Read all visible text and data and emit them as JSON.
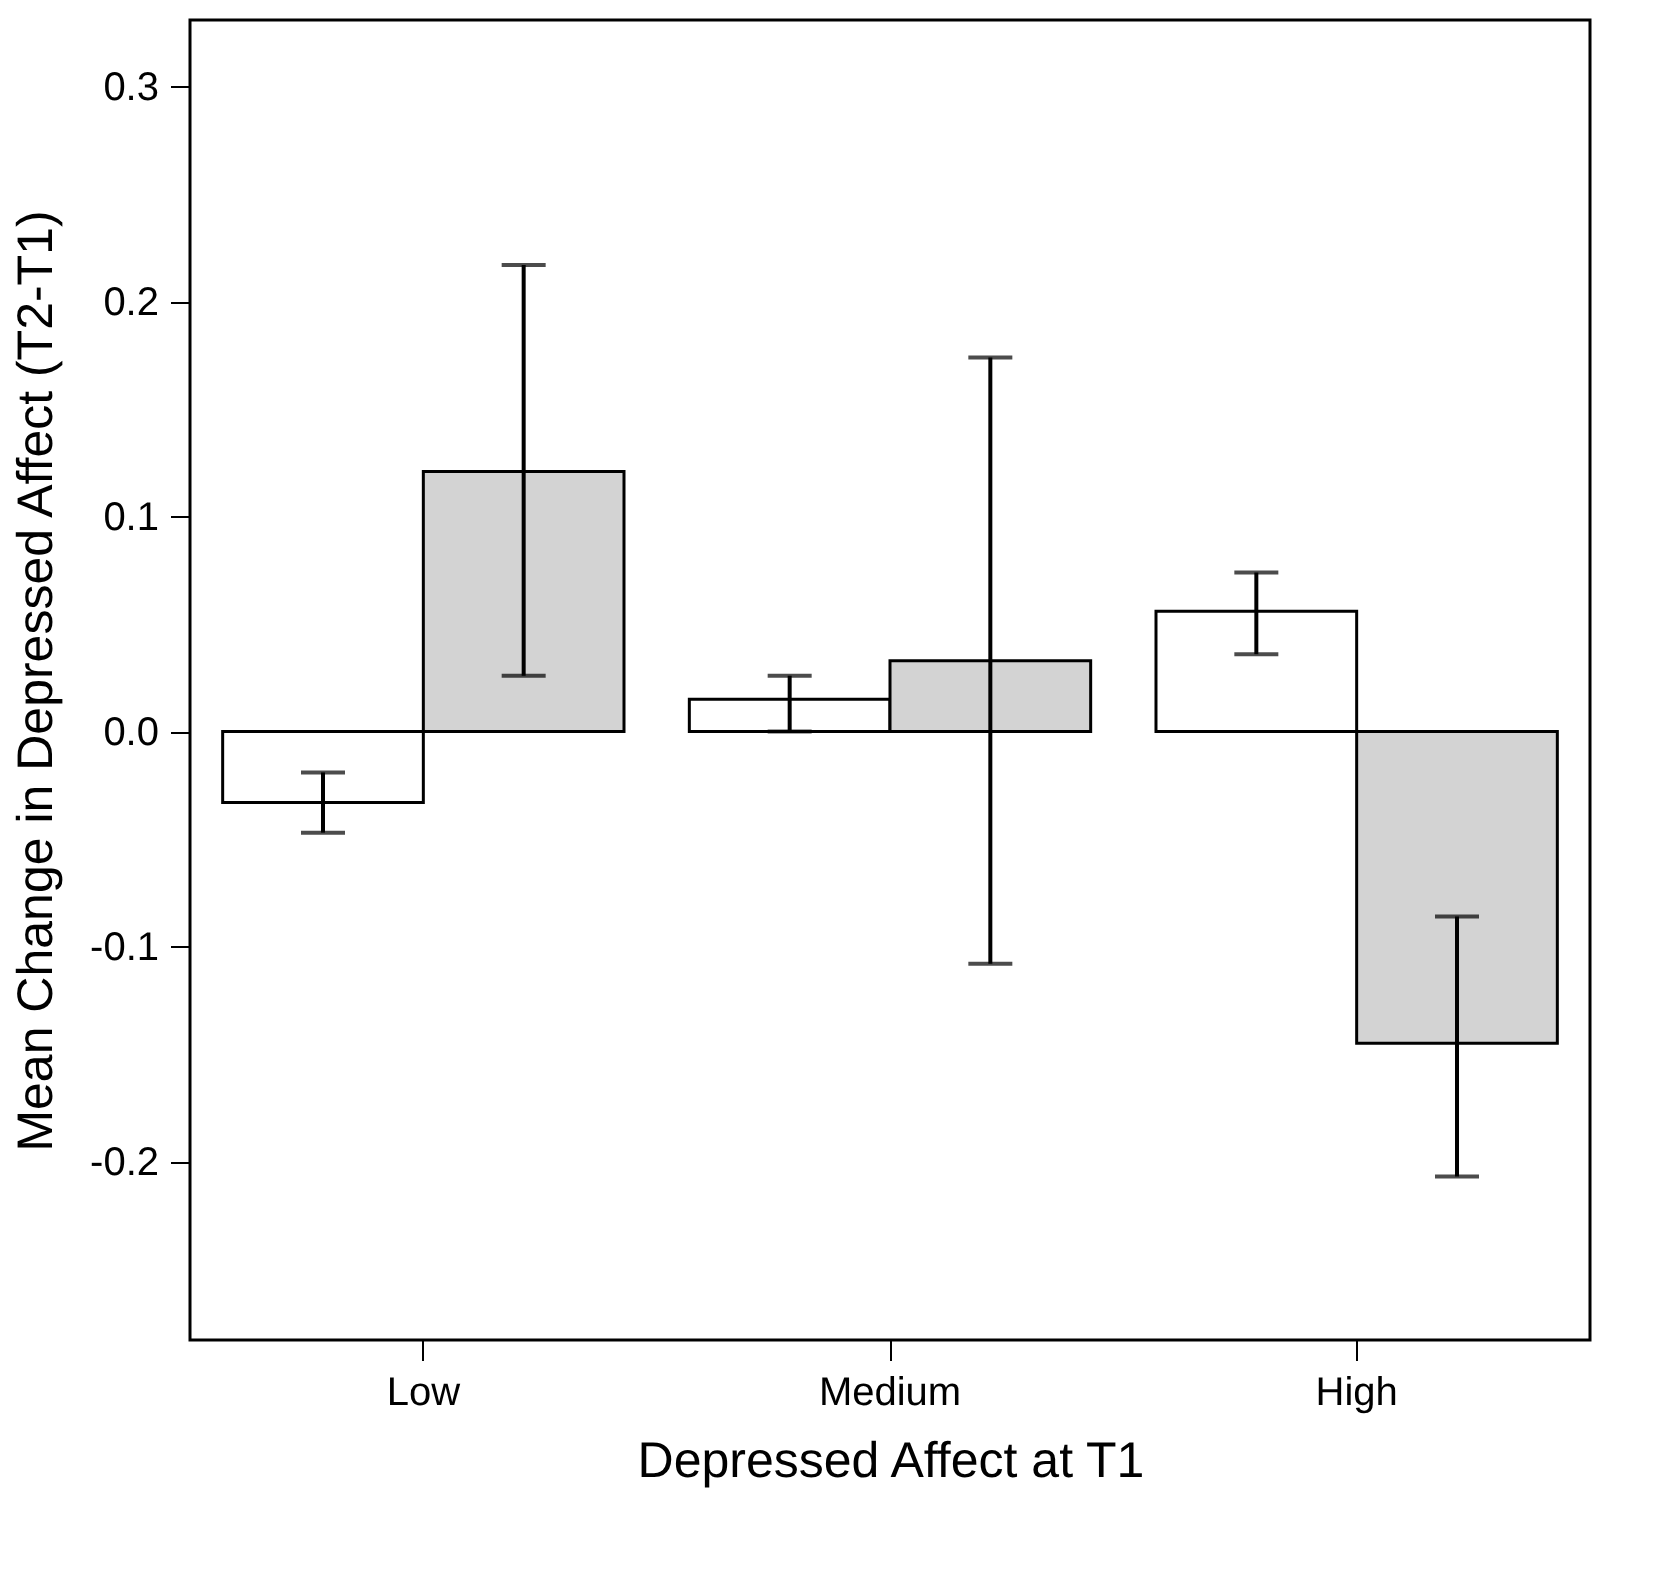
{
  "chart_data": {
    "type": "bar",
    "xlabel": "Depressed Affect at T1",
    "ylabel": "Mean Change in Depressed Affect (T2-T1)",
    "categories": [
      "Low",
      "Medium",
      "High"
    ],
    "series": [
      {
        "color": "#ffffff",
        "values": [
          -0.033,
          0.015,
          0.056
        ],
        "errors": [
          [
            -0.047,
            -0.019
          ],
          [
            0.0,
            0.026
          ],
          [
            0.036,
            0.074
          ]
        ]
      },
      {
        "color": "#d3d3d3",
        "values": [
          0.121,
          0.033,
          -0.145
        ],
        "errors": [
          [
            0.026,
            0.217
          ],
          [
            -0.108,
            0.174
          ],
          [
            -0.207,
            -0.086
          ]
        ]
      }
    ],
    "ylim": [
      -0.283,
      0.331
    ],
    "yticks": [
      {
        "value": -0.2,
        "label": "-0.2"
      },
      {
        "value": -0.1,
        "label": "-0.1"
      },
      {
        "value": 0,
        "label": "0.0"
      },
      {
        "value": 0.1,
        "label": "0.1"
      },
      {
        "value": 0.2,
        "label": "0.2"
      },
      {
        "value": 0.3,
        "label": "0.3"
      }
    ],
    "grid": false,
    "legend": false
  }
}
